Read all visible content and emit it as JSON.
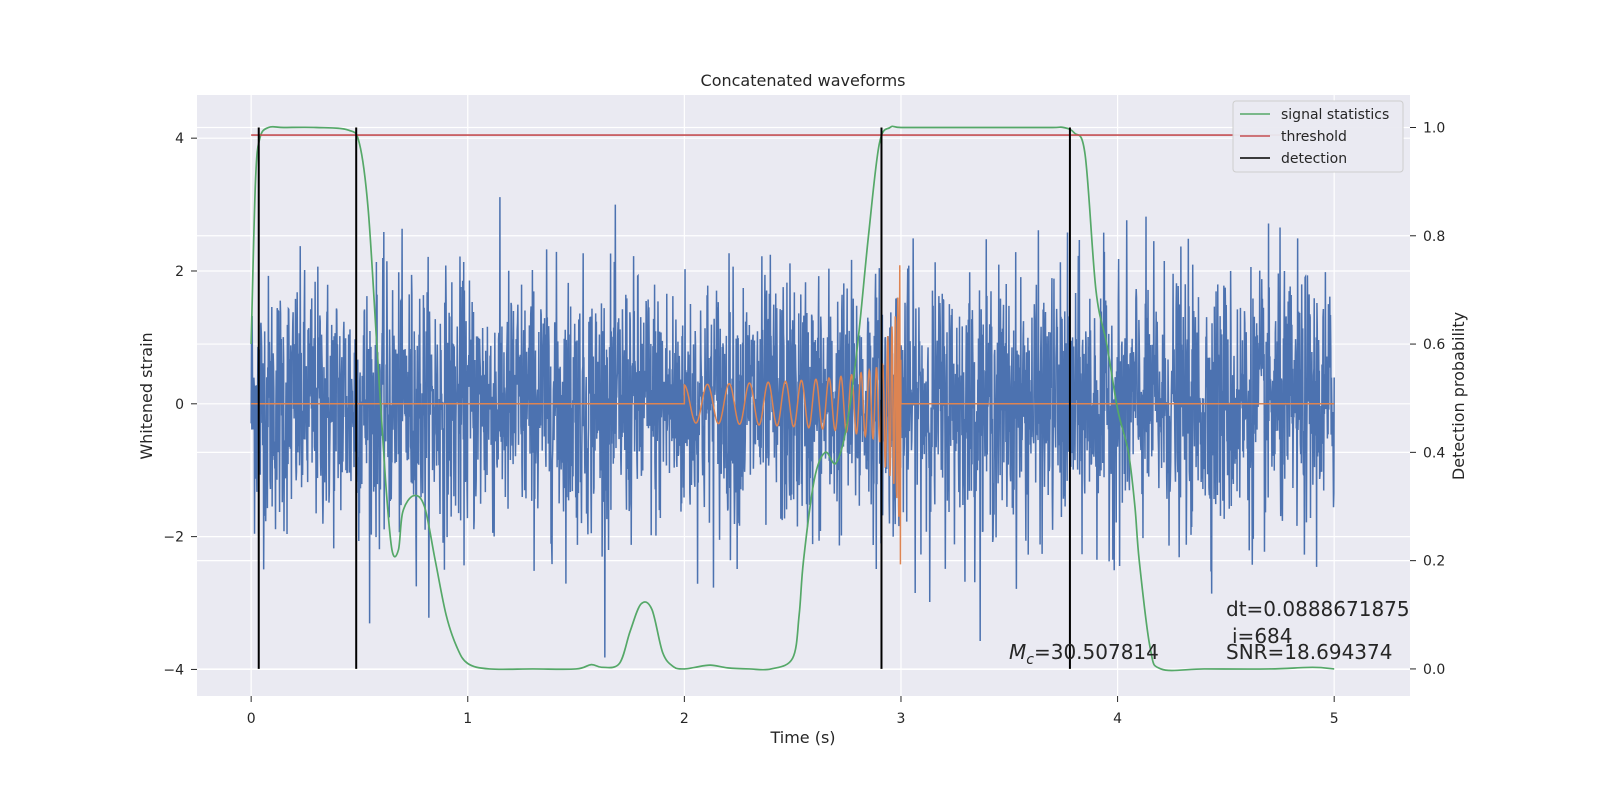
{
  "chart_data": {
    "type": "line",
    "title": "Concatenated waveforms",
    "xlabel": "Time (s)",
    "ylabel_left": "Whitened strain",
    "ylabel_right": "Detection probability",
    "xlim": [
      -0.25,
      5.35
    ],
    "ylim_left": [
      -4.4,
      4.65
    ],
    "ylim_right": [
      -0.05,
      1.06
    ],
    "xticks": [
      0,
      1,
      2,
      3,
      4,
      5
    ],
    "yticks_left": [
      -4,
      -2,
      0,
      2,
      4
    ],
    "yticks_right": [
      "0.0",
      "0.2",
      "0.4",
      "0.6",
      "0.8",
      "1.0"
    ],
    "grid": true,
    "legend_position": "top-right",
    "colors": {
      "strain": "#4c72b0",
      "template": "#dd8452",
      "signal_statistics": "#55a868",
      "threshold": "#c44e52",
      "detection": "#000000",
      "axes_bg": "#eaeaf2",
      "grid": "#ffffff"
    },
    "series": [
      {
        "name": "signal statistics",
        "axis": "right",
        "x": [
          0.0,
          0.02,
          0.04,
          0.08,
          0.15,
          0.3,
          0.45,
          0.5,
          0.54,
          0.58,
          0.62,
          0.65,
          0.68,
          0.7,
          0.75,
          0.8,
          0.85,
          0.9,
          0.95,
          1.0,
          1.1,
          1.3,
          1.5,
          1.57,
          1.62,
          1.7,
          1.75,
          1.8,
          1.85,
          1.9,
          1.95,
          2.0,
          2.05,
          2.12,
          2.2,
          2.3,
          2.4,
          2.5,
          2.53,
          2.55,
          2.6,
          2.65,
          2.7,
          2.75,
          2.8,
          2.85,
          2.9,
          2.95,
          3.0,
          3.2,
          3.5,
          3.7,
          3.75,
          3.8,
          3.85,
          3.9,
          3.95,
          4.0,
          4.05,
          4.08,
          4.1,
          4.15,
          4.2,
          4.4,
          4.7,
          4.9,
          5.0
        ],
        "y": [
          0.6,
          0.9,
          0.98,
          1.0,
          1.0,
          1.0,
          0.995,
          0.97,
          0.85,
          0.6,
          0.35,
          0.22,
          0.22,
          0.29,
          0.32,
          0.3,
          0.2,
          0.1,
          0.04,
          0.01,
          0.0,
          0.0,
          0.0,
          0.008,
          0.003,
          0.01,
          0.07,
          0.12,
          0.11,
          0.03,
          0.004,
          0.0,
          0.003,
          0.007,
          0.002,
          0.0,
          0.0,
          0.02,
          0.1,
          0.2,
          0.35,
          0.4,
          0.38,
          0.45,
          0.6,
          0.8,
          0.97,
          1.0,
          1.0,
          1.0,
          1.0,
          1.0,
          1.0,
          0.99,
          0.95,
          0.7,
          0.6,
          0.48,
          0.4,
          0.3,
          0.2,
          0.04,
          0.0,
          0.0,
          0.0,
          0.003,
          0.0
        ]
      },
      {
        "name": "threshold",
        "axis": "right",
        "x": [
          0.0,
          5.0
        ],
        "y": [
          0.986,
          0.986
        ]
      },
      {
        "name": "detection",
        "axis": "right",
        "x": [
          0.035,
          0.485,
          2.91,
          3.78
        ],
        "y_range": [
          0.0,
          1.0
        ]
      }
    ],
    "legend": [
      "signal statistics",
      "threshold",
      "detection"
    ],
    "annotations": {
      "dt": "dt=0.0888671875",
      "i": "i=684",
      "snr": "SNR=18.694374",
      "mc_symbol": "M",
      "mc_subscript": "c",
      "mc_value": "=30.507814"
    }
  }
}
